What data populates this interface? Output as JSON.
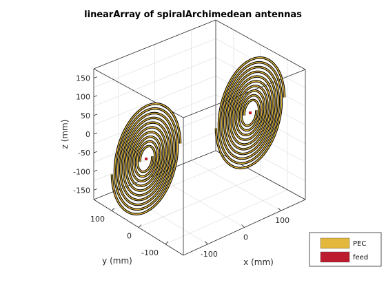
{
  "chart_data": {
    "type": "3d-antenna-geometry",
    "title": "linearArray of spiralArchimedean antennas",
    "xlabel": "x (mm)",
    "ylabel": "y (mm)",
    "zlabel": "z (mm)",
    "x_ticks": [
      "-100",
      "0",
      "100"
    ],
    "y_ticks": [
      "100",
      "0",
      "-100"
    ],
    "z_ticks": [
      "150",
      "100",
      "50",
      "0",
      "-50",
      "-100",
      "-150"
    ],
    "grid": true,
    "legend_position": "bottom-right",
    "legend": [
      {
        "label": "PEC",
        "color": "#e3b83c"
      },
      {
        "label": "feed",
        "color": "#bc1c2e"
      }
    ],
    "elements": 2,
    "spiral_turns": 5
  }
}
